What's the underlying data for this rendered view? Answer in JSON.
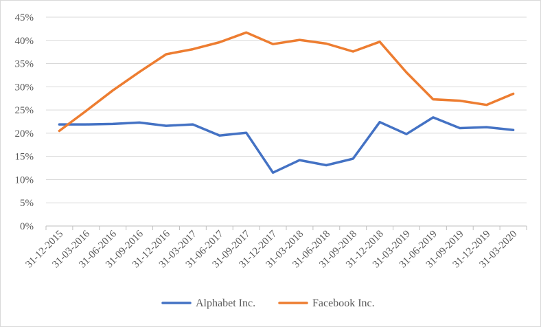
{
  "chart_data": {
    "type": "line",
    "title": "",
    "xlabel": "",
    "ylabel": "",
    "categories": [
      "31-12-2015",
      "31-03-2016",
      "31-06-2016",
      "31-09-2016",
      "31-12-2016",
      "31-03-2017",
      "31-06-2017",
      "31-09-2017",
      "31-12-2017",
      "31-03-2018",
      "31-06-2018",
      "31-09-2018",
      "31-12-2018",
      "31-03-2019",
      "31-06-2019",
      "31-09-2019",
      "31-12-2019",
      "31-03-2020"
    ],
    "yticks": [
      "0%",
      "5%",
      "10%",
      "15%",
      "20%",
      "25%",
      "30%",
      "35%",
      "40%",
      "45%"
    ],
    "ylim": [
      0,
      45
    ],
    "grid": true,
    "legend_position": "bottom",
    "series": [
      {
        "name": "Alphabet Inc.",
        "color": "#4472c4",
        "values": [
          21.9,
          21.9,
          22.0,
          22.3,
          21.6,
          21.9,
          19.5,
          20.1,
          11.5,
          14.2,
          13.1,
          14.5,
          22.4,
          19.8,
          23.4,
          21.1,
          21.3,
          20.7
        ]
      },
      {
        "name": "Facebook Inc.",
        "color": "#ed7d31",
        "values": [
          20.5,
          24.8,
          29.2,
          33.2,
          37.0,
          38.1,
          39.6,
          41.7,
          39.2,
          40.1,
          39.3,
          37.6,
          39.7,
          33.1,
          27.3,
          27.0,
          26.1,
          28.5
        ]
      }
    ]
  }
}
